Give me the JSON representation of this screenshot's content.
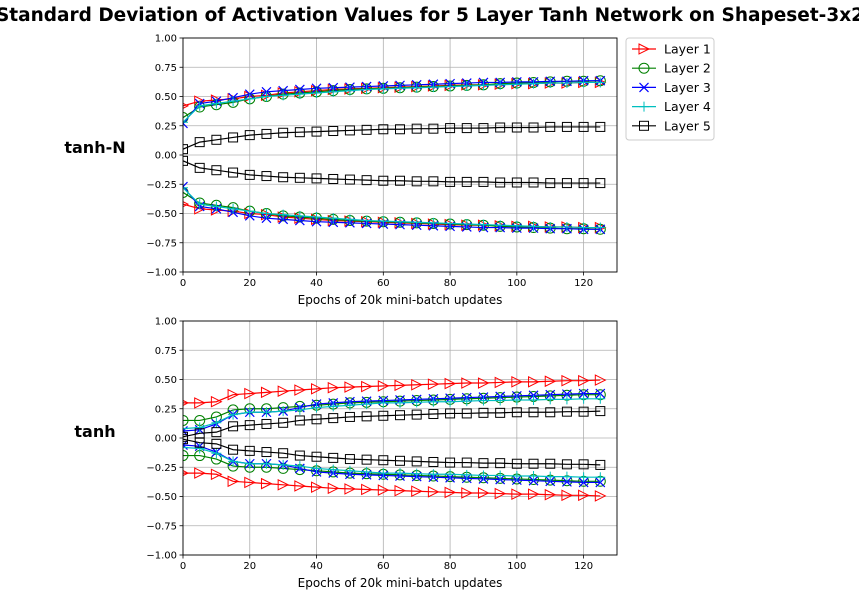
{
  "figure": {
    "title": "Standard Deviation of Activation Values for 5 Layer Tanh Network on Shapeset-3x2"
  },
  "legend": {
    "placement": "outside upper right",
    "entries": [
      {
        "name": "Layer 1",
        "color": "#ff0000",
        "marker": "triangle-right"
      },
      {
        "name": "Layer 2",
        "color": "#008000",
        "marker": "circle"
      },
      {
        "name": "Layer 3",
        "color": "#0000ff",
        "marker": "x"
      },
      {
        "name": "Layer 4",
        "color": "#00bfbf",
        "marker": "plus"
      },
      {
        "name": "Layer 5",
        "color": "#000000",
        "marker": "square"
      }
    ]
  },
  "chart_data": [
    {
      "type": "line",
      "panel_label": "tanh-N",
      "xlabel": "Epochs of 20k mini-batch updates",
      "ylabel": "",
      "xlim": [
        0,
        130
      ],
      "ylim": [
        -1.0,
        1.0
      ],
      "xticks": [
        "0",
        "20",
        "40",
        "60",
        "80",
        "100",
        "120"
      ],
      "yticks": [
        "−1.00",
        "−0.75",
        "−0.50",
        "−0.25",
        "0.00",
        "0.25",
        "0.50",
        "0.75",
        "1.00"
      ],
      "grid": true,
      "x": [
        0,
        5,
        10,
        15,
        20,
        25,
        30,
        35,
        40,
        45,
        50,
        55,
        60,
        65,
        70,
        75,
        80,
        85,
        90,
        95,
        100,
        105,
        110,
        115,
        120,
        125
      ],
      "series": [
        {
          "name": "Layer 1",
          "sign": "±",
          "values": [
            0.42,
            0.46,
            0.47,
            0.48,
            0.5,
            0.51,
            0.53,
            0.54,
            0.55,
            0.56,
            0.565,
            0.57,
            0.575,
            0.58,
            0.585,
            0.59,
            0.595,
            0.6,
            0.6,
            0.605,
            0.61,
            0.61,
            0.615,
            0.615,
            0.62,
            0.62
          ]
        },
        {
          "name": "Layer 2",
          "sign": "±",
          "values": [
            0.32,
            0.41,
            0.43,
            0.45,
            0.48,
            0.5,
            0.52,
            0.53,
            0.54,
            0.55,
            0.56,
            0.565,
            0.57,
            0.575,
            0.58,
            0.585,
            0.59,
            0.595,
            0.6,
            0.61,
            0.615,
            0.62,
            0.625,
            0.63,
            0.63,
            0.635
          ]
        },
        {
          "name": "Layer 3",
          "sign": "±",
          "values": [
            0.27,
            0.44,
            0.46,
            0.49,
            0.52,
            0.54,
            0.55,
            0.56,
            0.57,
            0.575,
            0.58,
            0.585,
            0.59,
            0.595,
            0.6,
            0.605,
            0.61,
            0.615,
            0.62,
            0.62,
            0.625,
            0.625,
            0.63,
            0.63,
            0.635,
            0.635
          ]
        },
        {
          "name": "Layer 4",
          "sign": "±",
          "values": [
            0.28,
            0.42,
            0.44,
            0.46,
            0.48,
            0.5,
            0.51,
            0.52,
            0.53,
            0.54,
            0.55,
            0.56,
            0.565,
            0.57,
            0.575,
            0.58,
            0.585,
            0.59,
            0.595,
            0.6,
            0.605,
            0.61,
            0.615,
            0.615,
            0.62,
            0.62
          ]
        },
        {
          "name": "Layer 5",
          "sign": "±",
          "values": [
            0.05,
            0.11,
            0.13,
            0.15,
            0.17,
            0.18,
            0.19,
            0.195,
            0.2,
            0.205,
            0.21,
            0.215,
            0.22,
            0.22,
            0.225,
            0.225,
            0.23,
            0.23,
            0.23,
            0.235,
            0.235,
            0.235,
            0.24,
            0.24,
            0.24,
            0.24
          ]
        }
      ]
    },
    {
      "type": "line",
      "panel_label": "tanh",
      "xlabel": "Epochs of 20k mini-batch updates",
      "ylabel": "",
      "xlim": [
        0,
        130
      ],
      "ylim": [
        -1.0,
        1.0
      ],
      "xticks": [
        "0",
        "20",
        "40",
        "60",
        "80",
        "100",
        "120"
      ],
      "yticks": [
        "−1.00",
        "−0.75",
        "−0.50",
        "−0.25",
        "0.00",
        "0.25",
        "0.50",
        "0.75",
        "1.00"
      ],
      "grid": true,
      "x": [
        0,
        5,
        10,
        15,
        20,
        25,
        30,
        35,
        40,
        45,
        50,
        55,
        60,
        65,
        70,
        75,
        80,
        85,
        90,
        95,
        100,
        105,
        110,
        115,
        120,
        125
      ],
      "series": [
        {
          "name": "Layer 1",
          "sign": "±",
          "values": [
            0.3,
            0.3,
            0.31,
            0.37,
            0.38,
            0.39,
            0.4,
            0.41,
            0.42,
            0.43,
            0.435,
            0.44,
            0.445,
            0.45,
            0.455,
            0.46,
            0.465,
            0.47,
            0.47,
            0.475,
            0.48,
            0.48,
            0.485,
            0.49,
            0.49,
            0.495
          ]
        },
        {
          "name": "Layer 2",
          "sign": "±",
          "values": [
            0.15,
            0.15,
            0.18,
            0.24,
            0.25,
            0.25,
            0.26,
            0.27,
            0.28,
            0.29,
            0.3,
            0.305,
            0.31,
            0.315,
            0.32,
            0.325,
            0.33,
            0.335,
            0.34,
            0.345,
            0.35,
            0.355,
            0.36,
            0.365,
            0.37,
            0.37
          ]
        },
        {
          "name": "Layer 3",
          "sign": "±",
          "values": [
            0.06,
            0.07,
            0.12,
            0.2,
            0.22,
            0.22,
            0.23,
            0.26,
            0.29,
            0.3,
            0.31,
            0.315,
            0.32,
            0.325,
            0.33,
            0.335,
            0.34,
            0.345,
            0.35,
            0.355,
            0.36,
            0.365,
            0.37,
            0.375,
            0.38,
            0.38
          ]
        },
        {
          "name": "Layer 4",
          "sign": "±",
          "values": [
            0.08,
            0.09,
            0.13,
            0.2,
            0.22,
            0.22,
            0.23,
            0.24,
            0.26,
            0.27,
            0.28,
            0.29,
            0.3,
            0.3,
            0.305,
            0.31,
            0.31,
            0.315,
            0.32,
            0.32,
            0.325,
            0.325,
            0.33,
            0.33,
            0.335,
            0.335
          ]
        },
        {
          "name": "Layer 5",
          "sign": "±",
          "values": [
            0.01,
            0.04,
            0.05,
            0.1,
            0.11,
            0.12,
            0.13,
            0.15,
            0.16,
            0.17,
            0.18,
            0.185,
            0.19,
            0.195,
            0.2,
            0.205,
            0.21,
            0.21,
            0.215,
            0.215,
            0.22,
            0.22,
            0.22,
            0.225,
            0.225,
            0.23
          ]
        }
      ]
    }
  ]
}
